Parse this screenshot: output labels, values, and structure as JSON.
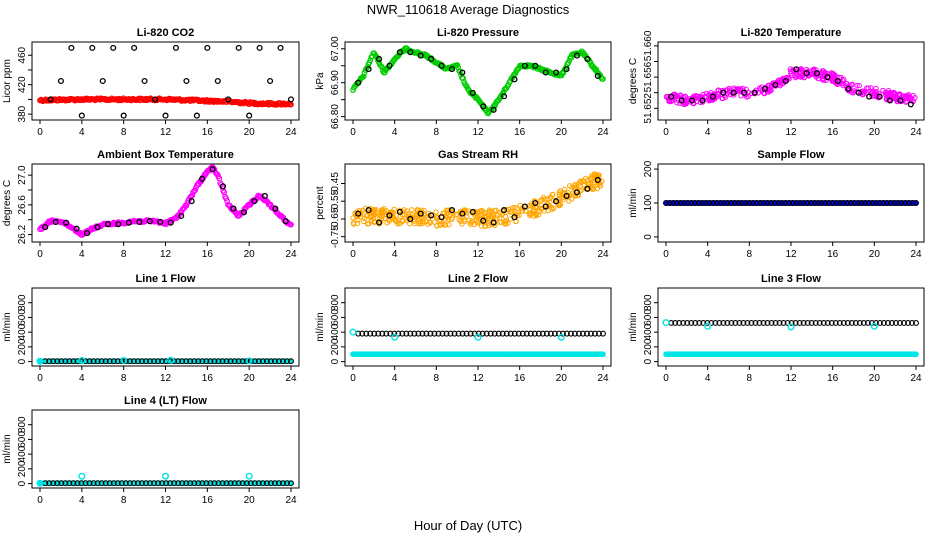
{
  "figure": {
    "title": "NWR_110618  Average Diagnostics",
    "xlabel": "Hour of Day (UTC)"
  },
  "colors": {
    "red": "#ff0000",
    "green": "#00cc00",
    "magenta": "#ff00ff",
    "orange": "#ffa500",
    "blue": "#0000ff",
    "cyan": "#00e5e5",
    "black": "#000000"
  },
  "chart_data": [
    {
      "id": "co2",
      "type": "scatter",
      "title": "Li-820 CO2",
      "ylabel": "Licor ppm",
      "x_ticks": [
        "0",
        "4",
        "8",
        "12",
        "16",
        "20",
        "24"
      ],
      "xlim": [
        0,
        24
      ],
      "ylim": [
        372,
        478
      ],
      "y_ticks": [
        380,
        400,
        420,
        440,
        460
      ],
      "y_tick_labels": [
        "380",
        "",
        "420",
        "",
        "460"
      ],
      "series": [
        {
          "name": "raw",
          "color": "red",
          "style": "dense",
          "x": [
            0,
            2,
            4,
            6,
            8,
            10,
            12,
            14,
            16,
            18,
            20,
            22,
            24
          ],
          "y": [
            399,
            399.5,
            400,
            400,
            400,
            400,
            400,
            399,
            398,
            397,
            395,
            394,
            394
          ]
        },
        {
          "name": "hourly",
          "color": "black",
          "style": "ring",
          "x": [
            1,
            2,
            3,
            4,
            5,
            6,
            7,
            8,
            9,
            10,
            11,
            12,
            13,
            14,
            15,
            16,
            17,
            18,
            19,
            20,
            21,
            22,
            23,
            24
          ],
          "y": [
            400,
            425,
            470,
            378,
            470,
            425,
            470,
            378,
            470,
            425,
            400,
            378,
            470,
            425,
            378,
            470,
            425,
            400,
            470,
            378,
            470,
            425,
            470,
            400
          ]
        }
      ]
    },
    {
      "id": "pressure",
      "type": "scatter",
      "title": "Li-820 Pressure",
      "ylabel": "kPa",
      "x_ticks": [
        "0",
        "4",
        "8",
        "12",
        "16",
        "20",
        "24"
      ],
      "xlim": [
        0,
        24
      ],
      "ylim": [
        66.79,
        67.02
      ],
      "y_ticks": [
        66.8,
        66.85,
        66.9,
        66.95,
        67.0
      ],
      "y_tick_labels": [
        "66.80",
        "",
        "66.90",
        "",
        "67.00"
      ],
      "series": [
        {
          "name": "raw",
          "color": "green",
          "style": "dense",
          "x": [
            0,
            1,
            2,
            3,
            4,
            5,
            6,
            7,
            8,
            9,
            10,
            11,
            12,
            13,
            14,
            15,
            16,
            17,
            18,
            19,
            20,
            21,
            22,
            23,
            24
          ],
          "y": [
            66.88,
            66.92,
            66.99,
            66.93,
            66.97,
            67.0,
            66.99,
            66.98,
            66.96,
            66.94,
            66.95,
            66.88,
            66.85,
            66.81,
            66.85,
            66.9,
            66.95,
            66.95,
            66.94,
            66.93,
            66.92,
            66.98,
            66.99,
            66.95,
            66.91
          ]
        },
        {
          "name": "hourly",
          "color": "black",
          "style": "ring",
          "x": [
            0.5,
            1.5,
            2.5,
            3.5,
            4.5,
            5.5,
            6.5,
            7.5,
            8.5,
            9.5,
            10.5,
            11.5,
            12.5,
            13.5,
            14.5,
            15.5,
            16.5,
            17.5,
            18.5,
            19.5,
            20.5,
            21.5,
            22.5,
            23.5
          ],
          "y": [
            66.9,
            66.94,
            66.97,
            66.95,
            66.99,
            66.99,
            66.98,
            66.97,
            66.95,
            66.94,
            66.93,
            66.87,
            66.83,
            66.82,
            66.86,
            66.91,
            66.95,
            66.95,
            66.93,
            66.93,
            66.94,
            66.98,
            66.97,
            66.92
          ]
        }
      ]
    },
    {
      "id": "li820temp",
      "type": "scatter",
      "title": "Li-820 Temperature",
      "ylabel": "degrees C",
      "x_ticks": [
        "0",
        "4",
        "8",
        "12",
        "16",
        "20",
        "24"
      ],
      "xlim": [
        0,
        24
      ],
      "ylim": [
        51.6505,
        51.6605
      ],
      "y_ticks": [
        51.652,
        51.654,
        51.656,
        51.658,
        51.66
      ],
      "y_tick_labels": [
        "51.652",
        "",
        "51.656",
        "",
        "51.660"
      ],
      "series": [
        {
          "name": "raw",
          "color": "magenta",
          "style": "noisy",
          "x": [
            0,
            2,
            4,
            6,
            8,
            10,
            12,
            14,
            16,
            18,
            20,
            22,
            24
          ],
          "y": [
            51.6535,
            51.653,
            51.6535,
            51.654,
            51.654,
            51.6545,
            51.6565,
            51.6565,
            51.656,
            51.6545,
            51.654,
            51.6535,
            51.653
          ],
          "spread": 0.0012
        },
        {
          "name": "hourly",
          "color": "black",
          "style": "ring",
          "x": [
            0.5,
            1.5,
            2.5,
            3.5,
            4.5,
            5.5,
            6.5,
            7.5,
            8.5,
            9.5,
            10.5,
            11.5,
            12.5,
            13.5,
            14.5,
            15.5,
            16.5,
            17.5,
            18.5,
            19.5,
            20.5,
            21.5,
            22.5,
            23.5
          ],
          "y": [
            51.6535,
            51.653,
            51.653,
            51.653,
            51.6535,
            51.654,
            51.654,
            51.654,
            51.654,
            51.6545,
            51.655,
            51.6555,
            51.657,
            51.6565,
            51.6565,
            51.656,
            51.6555,
            51.6545,
            51.654,
            51.6535,
            51.6535,
            51.653,
            51.653,
            51.6525
          ]
        }
      ]
    },
    {
      "id": "boxtemp",
      "type": "scatter",
      "title": "Ambient Box Temperature",
      "ylabel": "degrees C",
      "x_ticks": [
        "0",
        "4",
        "8",
        "12",
        "16",
        "20",
        "24"
      ],
      "xlim": [
        0,
        24
      ],
      "ylim": [
        26.1,
        27.15
      ],
      "y_ticks": [
        26.2,
        26.4,
        26.6,
        26.8,
        27.0
      ],
      "y_tick_labels": [
        "26.2",
        "",
        "26.6",
        "",
        "27.0"
      ],
      "series": [
        {
          "name": "raw",
          "color": "magenta",
          "style": "dense",
          "x": [
            0,
            1,
            2,
            3,
            4,
            5,
            6,
            7,
            8,
            9,
            10,
            11,
            12,
            13,
            14,
            15,
            16,
            16.5,
            17,
            18,
            19,
            20,
            21,
            22,
            23,
            24
          ],
          "y": [
            26.27,
            26.38,
            26.38,
            26.3,
            26.2,
            26.28,
            26.33,
            26.35,
            26.36,
            26.38,
            26.38,
            26.38,
            26.35,
            26.42,
            26.6,
            26.85,
            27.05,
            27.1,
            27.0,
            26.6,
            26.45,
            26.6,
            26.73,
            26.6,
            26.45,
            26.32
          ]
        },
        {
          "name": "hourly",
          "color": "black",
          "style": "ring",
          "x": [
            0.5,
            1.5,
            2.5,
            3.5,
            4.5,
            5.5,
            6.5,
            7.5,
            8.5,
            9.5,
            10.5,
            11.5,
            12.5,
            13.5,
            14.5,
            15.5,
            16.5,
            17.5,
            18.5,
            19.5,
            20.5,
            21.5,
            22.5,
            23.5
          ],
          "y": [
            26.3,
            26.37,
            26.36,
            26.28,
            26.22,
            26.3,
            26.34,
            26.34,
            26.36,
            26.37,
            26.38,
            26.37,
            26.36,
            26.45,
            26.65,
            26.95,
            27.08,
            26.85,
            26.55,
            26.5,
            26.65,
            26.72,
            26.55,
            26.38
          ]
        }
      ]
    },
    {
      "id": "rh",
      "type": "scatter",
      "title": "Gas Stream RH",
      "ylabel": "percent",
      "x_ticks": [
        "0",
        "4",
        "8",
        "12",
        "16",
        "20",
        "24"
      ],
      "xlim": [
        0,
        24
      ],
      "ylim": [
        -0.78,
        -0.34
      ],
      "y_ticks": [
        -0.75,
        -0.65,
        -0.55,
        -0.45
      ],
      "y_tick_labels": [
        "-0.75",
        "-0.65",
        "-0.55",
        "-0.45"
      ],
      "series": [
        {
          "name": "raw",
          "color": "orange",
          "style": "noisy",
          "x": [
            0,
            2,
            4,
            6,
            8,
            10,
            12,
            14,
            16,
            18,
            20,
            22,
            24
          ],
          "y": [
            -0.64,
            -0.63,
            -0.64,
            -0.64,
            -0.645,
            -0.64,
            -0.65,
            -0.64,
            -0.62,
            -0.58,
            -0.53,
            -0.47,
            -0.42
          ],
          "spread": 0.09
        },
        {
          "name": "hourly",
          "color": "black",
          "style": "ring",
          "x": [
            0.5,
            1.5,
            2.5,
            3.5,
            4.5,
            5.5,
            6.5,
            7.5,
            8.5,
            9.5,
            10.5,
            11.5,
            12.5,
            13.5,
            14.5,
            15.5,
            16.5,
            17.5,
            18.5,
            19.5,
            20.5,
            21.5,
            22.5,
            23.5
          ],
          "y": [
            -0.62,
            -0.6,
            -0.67,
            -0.63,
            -0.61,
            -0.65,
            -0.62,
            -0.63,
            -0.64,
            -0.6,
            -0.62,
            -0.61,
            -0.66,
            -0.67,
            -0.6,
            -0.64,
            -0.58,
            -0.56,
            -0.58,
            -0.55,
            -0.52,
            -0.5,
            -0.48,
            -0.43
          ]
        }
      ]
    },
    {
      "id": "sampleflow",
      "type": "scatter",
      "title": "Sample Flow",
      "ylabel": "ml/min",
      "x_ticks": [
        "0",
        "4",
        "8",
        "12",
        "16",
        "20",
        "24"
      ],
      "xlim": [
        0,
        24
      ],
      "ylim": [
        -15,
        215
      ],
      "y_ticks": [
        0,
        100,
        200
      ],
      "y_tick_labels": [
        "0",
        "100",
        "200"
      ],
      "series": [
        {
          "name": "raw",
          "color": "blue",
          "style": "flat",
          "x": [
            0,
            24
          ],
          "y": [
            100,
            100
          ]
        },
        {
          "name": "hourly",
          "color": "black",
          "style": "ring",
          "x": [
            0,
            24
          ],
          "y": [
            100,
            100
          ],
          "count": 70
        }
      ]
    },
    {
      "id": "line1",
      "type": "scatter",
      "title": "Line 1 Flow",
      "ylabel": "ml/min",
      "x_ticks": [
        "0",
        "4",
        "8",
        "12",
        "16",
        "20",
        "24"
      ],
      "xlim": [
        0,
        24
      ],
      "ylim": [
        -60,
        1000
      ],
      "y_ticks": [
        0,
        200,
        400,
        600,
        800
      ],
      "y_tick_labels": [
        "0",
        "200",
        "400",
        "600",
        "800"
      ],
      "series": [
        {
          "name": "raw",
          "color": "cyan",
          "style": "flat",
          "x": [
            0,
            24
          ],
          "y": [
            5,
            5
          ]
        },
        {
          "name": "hourly",
          "color": "black",
          "style": "ring",
          "x": [
            0.5,
            24
          ],
          "y": [
            5,
            5
          ],
          "count": 62
        },
        {
          "name": "spikes",
          "color": "cyan",
          "style": "ringonly",
          "x": [
            0,
            4,
            8,
            12.5,
            20
          ],
          "y": [
            5,
            15,
            15,
            20,
            10
          ]
        }
      ]
    },
    {
      "id": "line2",
      "type": "scatter",
      "title": "Line 2 Flow",
      "ylabel": "ml/min",
      "x_ticks": [
        "0",
        "4",
        "8",
        "12",
        "16",
        "20",
        "24"
      ],
      "xlim": [
        0,
        24
      ],
      "ylim": [
        -60,
        1000
      ],
      "y_ticks": [
        0,
        200,
        400,
        600,
        800
      ],
      "y_tick_labels": [
        "0",
        "200",
        "400",
        "600",
        "800"
      ],
      "series": [
        {
          "name": "raw",
          "color": "cyan",
          "style": "flat",
          "x": [
            0,
            24
          ],
          "y": [
            100,
            100
          ]
        },
        {
          "name": "hourly",
          "color": "black",
          "style": "ring",
          "x": [
            0.5,
            24
          ],
          "y": [
            380,
            380
          ],
          "count": 62
        },
        {
          "name": "spikes",
          "color": "cyan",
          "style": "ringonly",
          "x": [
            0,
            4,
            12,
            20
          ],
          "y": [
            400,
            330,
            330,
            330
          ]
        }
      ]
    },
    {
      "id": "line3",
      "type": "scatter",
      "title": "Line 3 Flow",
      "ylabel": "ml/min",
      "x_ticks": [
        "0",
        "4",
        "8",
        "12",
        "16",
        "20",
        "24"
      ],
      "xlim": [
        0,
        24
      ],
      "ylim": [
        -60,
        1000
      ],
      "y_ticks": [
        0,
        200,
        400,
        600,
        800
      ],
      "y_tick_labels": [
        "0",
        "200",
        "400",
        "600",
        "800"
      ],
      "series": [
        {
          "name": "raw",
          "color": "cyan",
          "style": "flat",
          "x": [
            0,
            24
          ],
          "y": [
            100,
            100
          ]
        },
        {
          "name": "hourly",
          "color": "black",
          "style": "ring",
          "x": [
            0.5,
            24
          ],
          "y": [
            525,
            525
          ],
          "count": 62
        },
        {
          "name": "spikes",
          "color": "cyan",
          "style": "ringonly",
          "x": [
            0,
            4,
            12,
            20
          ],
          "y": [
            530,
            480,
            470,
            480
          ]
        }
      ]
    },
    {
      "id": "line4",
      "type": "scatter",
      "title": "Line 4 (LT) Flow",
      "ylabel": "ml/min",
      "x_ticks": [
        "0",
        "4",
        "8",
        "12",
        "16",
        "20",
        "24"
      ],
      "xlim": [
        0,
        24
      ],
      "ylim": [
        -60,
        1000
      ],
      "y_ticks": [
        0,
        200,
        400,
        600,
        800
      ],
      "y_tick_labels": [
        "0",
        "200",
        "400",
        "600",
        "800"
      ],
      "series": [
        {
          "name": "raw",
          "color": "cyan",
          "style": "flat",
          "x": [
            0,
            24
          ],
          "y": [
            5,
            5
          ]
        },
        {
          "name": "hourly",
          "color": "black",
          "style": "ring",
          "x": [
            0.5,
            24
          ],
          "y": [
            5,
            5
          ],
          "count": 62
        },
        {
          "name": "spikes",
          "color": "cyan",
          "style": "ringonly",
          "x": [
            0,
            4,
            12,
            20
          ],
          "y": [
            5,
            100,
            100,
            100
          ]
        }
      ]
    }
  ]
}
